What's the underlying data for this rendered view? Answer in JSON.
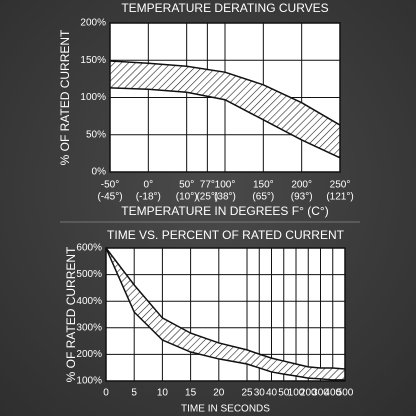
{
  "chart_data": [
    {
      "type": "band",
      "title": "TEMPERATURE DERATING CURVES",
      "x_label": "TEMPERATURE IN DEGREES F° (C°)",
      "y_label": "% OF RATED CURRENT",
      "xlim": [
        -50,
        250
      ],
      "xticks": [
        {
          "value": -50,
          "label": "-50°",
          "sublabel": "(-45°)"
        },
        {
          "value": 0,
          "label": "0°",
          "sublabel": "(-18°)"
        },
        {
          "value": 50,
          "label": "50°",
          "sublabel": "(10°)"
        },
        {
          "value": 77,
          "label": "77°",
          "sublabel": "(25°)"
        },
        {
          "value": 100,
          "label": "100°",
          "sublabel": "(38°)"
        },
        {
          "value": 150,
          "label": "150°",
          "sublabel": "(65°)"
        },
        {
          "value": 200,
          "label": "200°",
          "sublabel": "(93°)"
        },
        {
          "value": 250,
          "label": "250°",
          "sublabel": "(121°)"
        }
      ],
      "ylim": [
        0,
        200
      ],
      "yticks": [
        {
          "value": 0,
          "label": "0%"
        },
        {
          "value": 50,
          "label": "50%"
        },
        {
          "value": 100,
          "label": "100%"
        },
        {
          "value": 150,
          "label": "150%"
        },
        {
          "value": 200,
          "label": "200%"
        }
      ],
      "grid": true,
      "band": {
        "x": [
          -50,
          0,
          50,
          100,
          150,
          200,
          250
        ],
        "upper": [
          149,
          146,
          142,
          134,
          117,
          93,
          63
        ],
        "lower": [
          113,
          111,
          107,
          97,
          70,
          43,
          19
        ]
      }
    },
    {
      "type": "band",
      "title": "TIME VS. PERCENT OF RATED CURRENT",
      "x_label": "TIME IN SECONDS",
      "y_label": "% OF RATED CURRENT",
      "categories": [
        "0",
        "5",
        "10",
        "15",
        "20",
        "25",
        "30",
        "40",
        "50",
        "100",
        "200",
        "300",
        "400",
        "500"
      ],
      "ylim": [
        100,
        600
      ],
      "yticks": [
        {
          "value": 100,
          "label": "100%"
        },
        {
          "value": 200,
          "label": "200%"
        },
        {
          "value": 300,
          "label": "300%"
        },
        {
          "value": 400,
          "label": "400%"
        },
        {
          "value": 500,
          "label": "500%"
        },
        {
          "value": 600,
          "label": "600%"
        }
      ],
      "grid": true,
      "band": {
        "upper": [
          600,
          461,
          337,
          280,
          243,
          217,
          201,
          186,
          175,
          164,
          153,
          149,
          149,
          145
        ],
        "lower": [
          600,
          359,
          254,
          209,
          183,
          164,
          149,
          134,
          126,
          119,
          111,
          108,
          104,
          104
        ]
      }
    }
  ]
}
